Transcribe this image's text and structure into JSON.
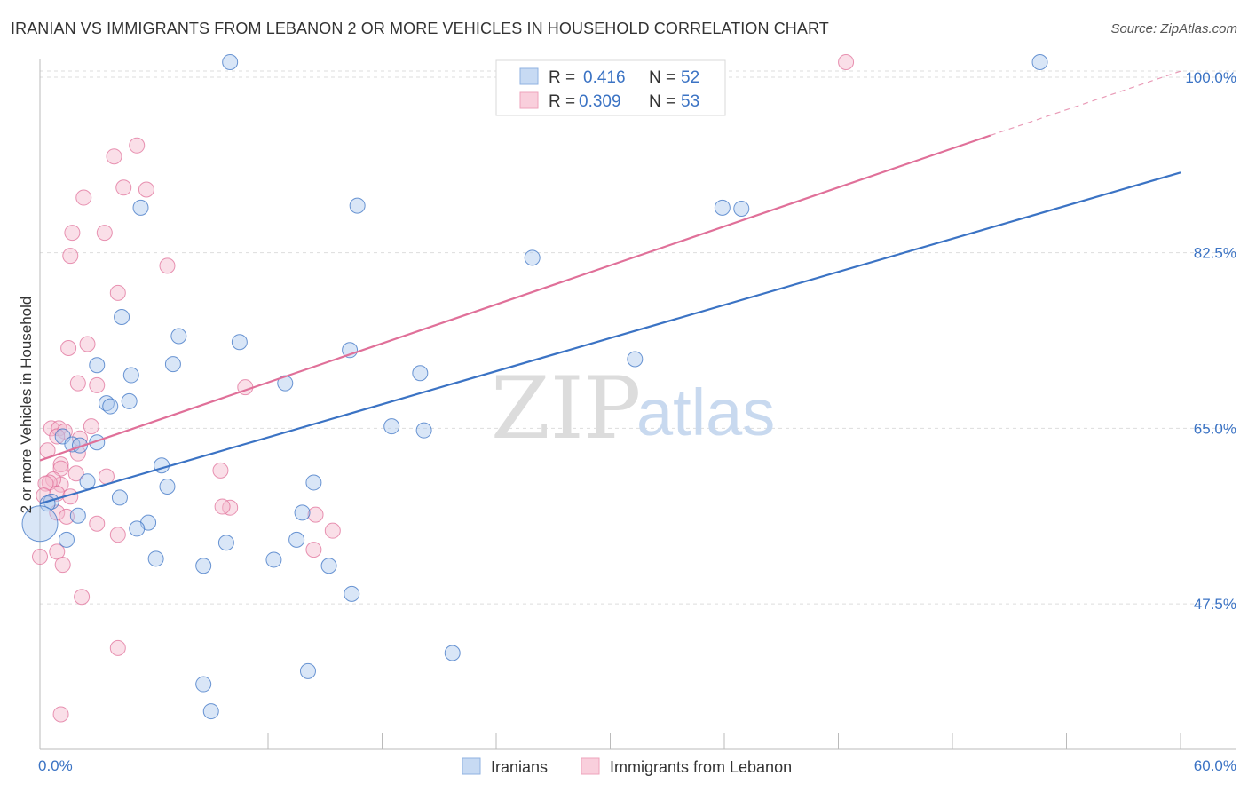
{
  "title": "IRANIAN VS IMMIGRANTS FROM LEBANON 2 OR MORE VEHICLES IN HOUSEHOLD CORRELATION CHART",
  "source": "Source: ZipAtlas.com",
  "watermark": {
    "zip": "ZIP",
    "atlas": "atlas"
  },
  "colors": {
    "blue": "#3b73c4",
    "blue_fill": "#aac7ee",
    "pink": "#e07099",
    "pink_fill": "#f5b8cb",
    "grid": "#dddddd"
  },
  "legend": {
    "rows": [
      {
        "r_label": "R =",
        "r_value": "0.416",
        "n_label": "N =",
        "n_value": "52"
      },
      {
        "r_label": "R =",
        "r_value": "0.309",
        "n_label": "N =",
        "n_value": "53"
      }
    ]
  },
  "chart_data": {
    "type": "scatter",
    "title": "IRANIAN VS IMMIGRANTS FROM LEBANON 2 OR MORE VEHICLES IN HOUSEHOLD CORRELATION CHART",
    "xlabel": "",
    "ylabel": "2 or more Vehicles in Household",
    "xlim": [
      0,
      60
    ],
    "ylim": [
      33,
      101.5
    ],
    "x_tick_labels": [
      "0.0%",
      "60.0%"
    ],
    "y_ticks": [
      47.5,
      65.0,
      82.5,
      100.0
    ],
    "y_tick_labels": [
      "47.5%",
      "65.0%",
      "82.5%",
      "100.0%"
    ],
    "grid": true,
    "legend_position": "top-center",
    "series": [
      {
        "name": "Iranians",
        "color": "blue",
        "trend": {
          "x0": 0,
          "y0": 57.5,
          "x1": 60,
          "y1": 90.5,
          "dash_x1": 60
        },
        "points": [
          [
            10.0,
            101.5
          ],
          [
            52.6,
            101.5
          ],
          [
            5.3,
            87.0
          ],
          [
            16.7,
            87.2
          ],
          [
            35.9,
            87.0
          ],
          [
            36.9,
            86.9
          ],
          [
            25.9,
            82.0
          ],
          [
            4.3,
            76.1
          ],
          [
            7.3,
            74.2
          ],
          [
            10.5,
            73.6
          ],
          [
            16.3,
            72.8
          ],
          [
            31.3,
            71.9
          ],
          [
            3.0,
            71.3
          ],
          [
            7.0,
            71.4
          ],
          [
            4.8,
            70.3
          ],
          [
            12.9,
            69.5
          ],
          [
            20.0,
            70.5
          ],
          [
            3.5,
            67.5
          ],
          [
            3.7,
            67.2
          ],
          [
            4.7,
            67.7
          ],
          [
            18.5,
            65.2
          ],
          [
            20.2,
            64.8
          ],
          [
            1.2,
            64.2
          ],
          [
            3.0,
            63.6
          ],
          [
            1.7,
            63.4
          ],
          [
            2.1,
            63.3
          ],
          [
            6.4,
            61.3
          ],
          [
            2.5,
            59.7
          ],
          [
            14.4,
            59.6
          ],
          [
            6.7,
            59.2
          ],
          [
            4.2,
            58.1
          ],
          [
            0.6,
            57.7
          ],
          [
            0.4,
            57.5
          ],
          [
            13.8,
            56.6
          ],
          [
            2.0,
            56.3
          ],
          [
            5.7,
            55.6
          ],
          [
            5.1,
            55.0
          ],
          [
            13.5,
            53.9
          ],
          [
            1.4,
            53.9
          ],
          [
            9.8,
            53.6
          ],
          [
            6.1,
            52.0
          ],
          [
            12.3,
            51.9
          ],
          [
            8.6,
            51.3
          ],
          [
            15.2,
            51.3
          ],
          [
            16.4,
            48.5
          ],
          [
            21.7,
            42.6
          ],
          [
            14.1,
            40.8
          ],
          [
            8.6,
            39.5
          ],
          [
            9.0,
            36.8
          ],
          [
            0.0,
            55.5
          ]
        ]
      },
      {
        "name": "Immigrants from Lebanon",
        "color": "pink",
        "trend": {
          "x0": 0,
          "y0": 61.8,
          "x1": 50,
          "y1": 94.2,
          "dash_x1": 60,
          "dash_y1": 100.6
        },
        "points": [
          [
            42.4,
            101.5
          ],
          [
            5.1,
            93.2
          ],
          [
            3.9,
            92.1
          ],
          [
            4.4,
            89.0
          ],
          [
            5.6,
            88.8
          ],
          [
            2.3,
            88.0
          ],
          [
            1.7,
            84.5
          ],
          [
            3.4,
            84.5
          ],
          [
            1.6,
            82.2
          ],
          [
            6.7,
            81.2
          ],
          [
            4.1,
            78.5
          ],
          [
            1.5,
            73.0
          ],
          [
            2.5,
            73.4
          ],
          [
            10.8,
            69.1
          ],
          [
            2.0,
            69.5
          ],
          [
            3.0,
            69.3
          ],
          [
            0.6,
            65.0
          ],
          [
            2.7,
            65.2
          ],
          [
            1.0,
            65.0
          ],
          [
            1.3,
            64.7
          ],
          [
            2.1,
            64.0
          ],
          [
            0.9,
            64.2
          ],
          [
            0.4,
            62.8
          ],
          [
            1.1,
            61.4
          ],
          [
            2.0,
            62.5
          ],
          [
            1.1,
            61.0
          ],
          [
            1.9,
            60.5
          ],
          [
            9.5,
            60.8
          ],
          [
            1.1,
            59.4
          ],
          [
            3.5,
            60.2
          ],
          [
            0.7,
            59.9
          ],
          [
            0.5,
            59.6
          ],
          [
            0.3,
            59.5
          ],
          [
            0.9,
            58.5
          ],
          [
            0.2,
            58.3
          ],
          [
            1.6,
            58.2
          ],
          [
            0.9,
            56.6
          ],
          [
            1.4,
            56.2
          ],
          [
            10.0,
            57.1
          ],
          [
            9.6,
            57.2
          ],
          [
            14.5,
            56.4
          ],
          [
            3.0,
            55.5
          ],
          [
            15.4,
            54.8
          ],
          [
            4.1,
            54.4
          ],
          [
            14.4,
            52.9
          ],
          [
            0.9,
            52.7
          ],
          [
            0.0,
            52.2
          ],
          [
            1.2,
            51.4
          ],
          [
            2.2,
            48.2
          ],
          [
            4.1,
            43.1
          ],
          [
            1.1,
            36.5
          ]
        ]
      }
    ]
  }
}
